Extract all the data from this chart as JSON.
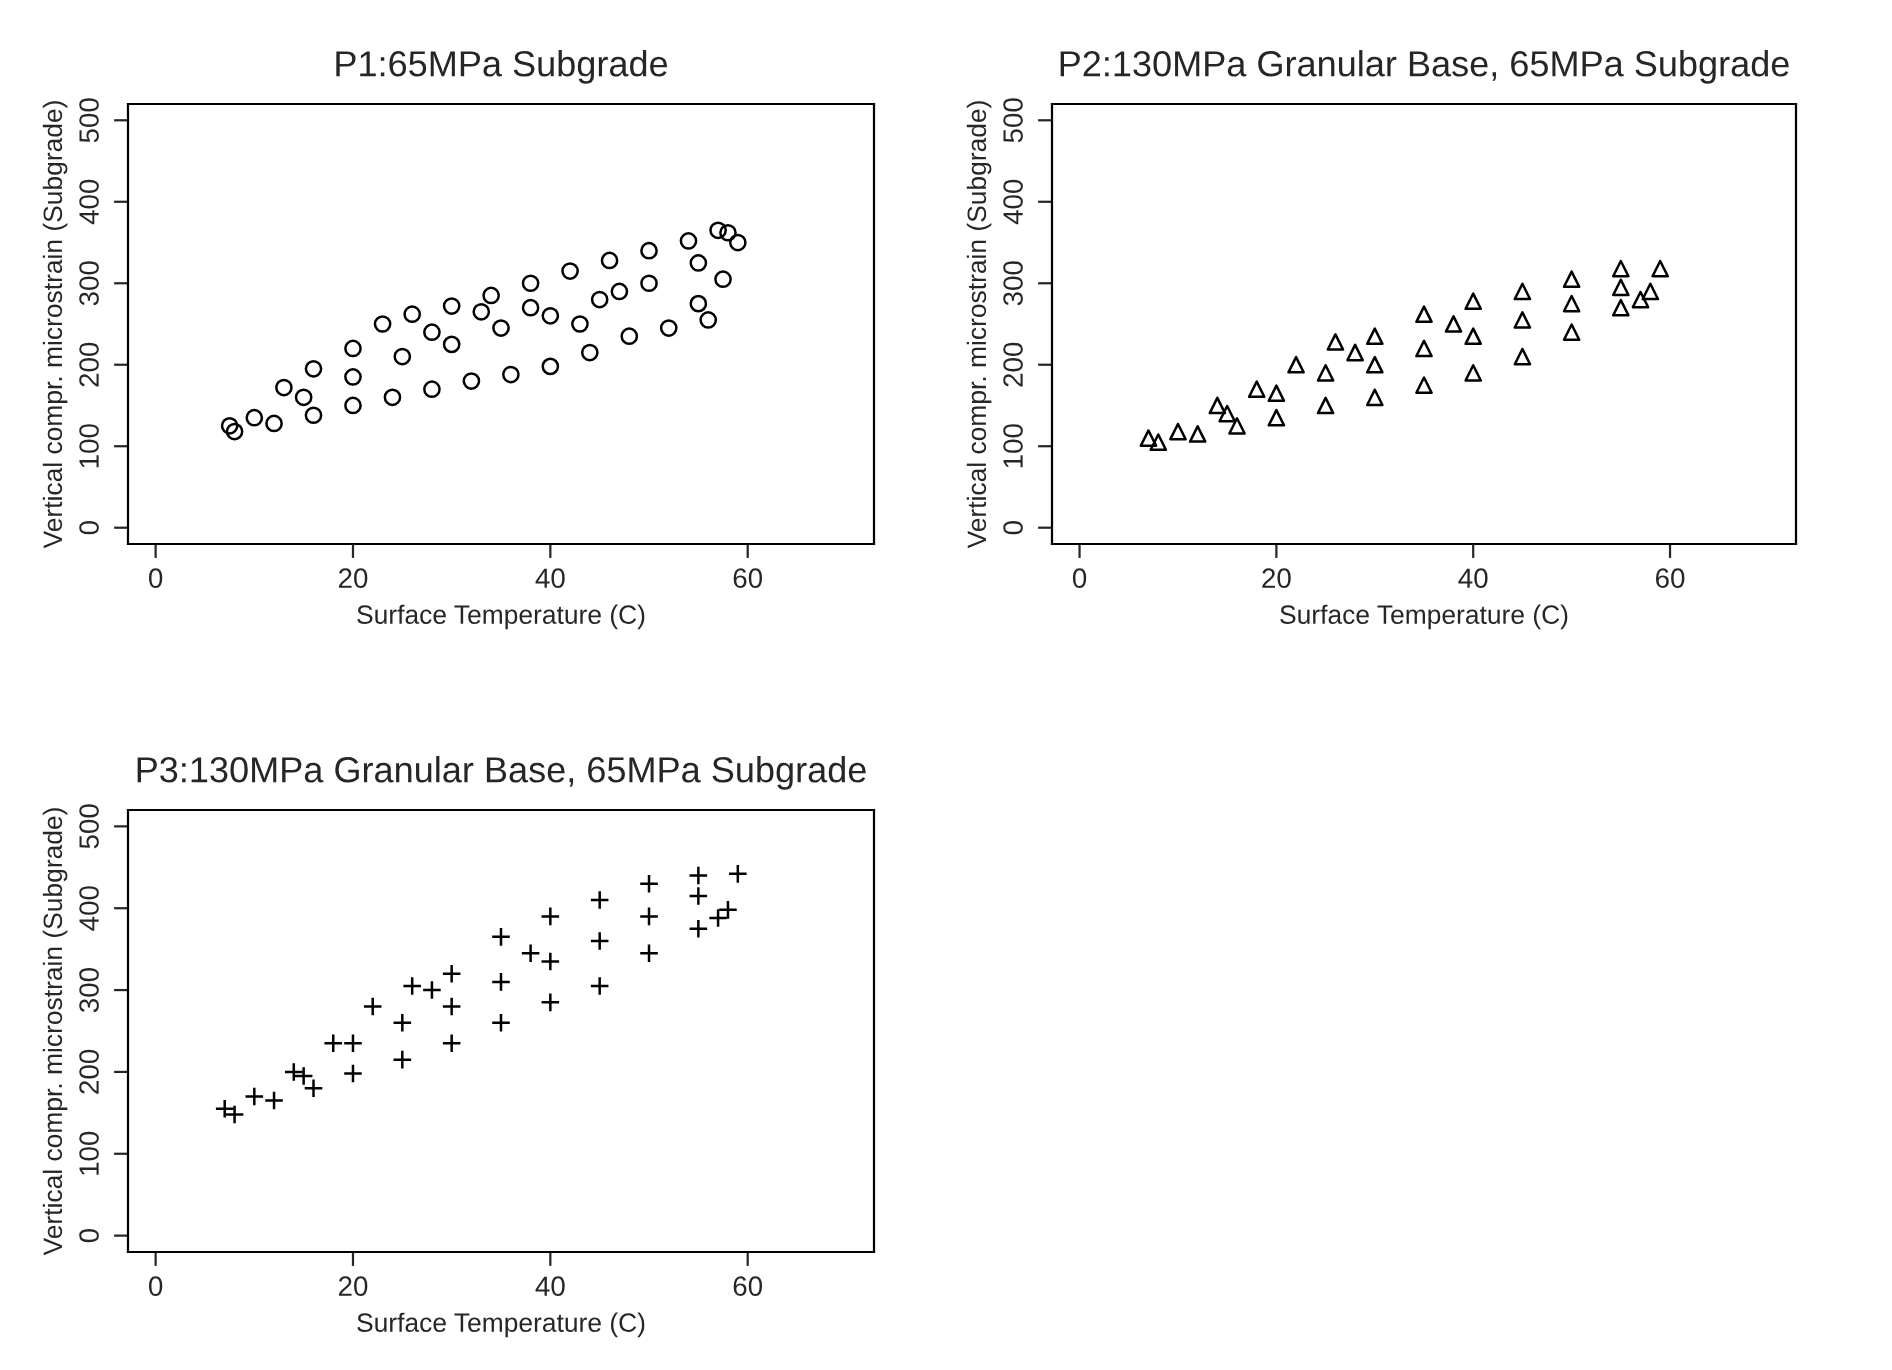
{
  "chart_data": [
    {
      "type": "scatter",
      "title": "P1:65MPa Subgrade",
      "xlabel": "Surface Temperature (C)",
      "ylabel": "Vertical compr. microstrain (Subgrade)",
      "xlim": [
        -2.8,
        72.8
      ],
      "ylim": [
        -20,
        520
      ],
      "xticks": [
        0,
        20,
        40,
        60
      ],
      "yticks": [
        0,
        100,
        200,
        300,
        400,
        500
      ],
      "marker": "circle",
      "series": [
        {
          "color": "#000000",
          "x": [
            7.5,
            10,
            13,
            16,
            20,
            23,
            26,
            30,
            34,
            38,
            42,
            46,
            50,
            54,
            57,
            58,
            8,
            12,
            16,
            20,
            24,
            28,
            32,
            36,
            40,
            44,
            48,
            52,
            56,
            59,
            57.5,
            55,
            15,
            20,
            25,
            30,
            35,
            40,
            45,
            50,
            55,
            28,
            33,
            38,
            43,
            47
          ],
          "values": [
            125,
            135,
            172,
            195,
            220,
            250,
            262,
            272,
            285,
            300,
            315,
            328,
            340,
            352,
            365,
            362,
            118,
            128,
            138,
            150,
            160,
            170,
            180,
            188,
            198,
            215,
            235,
            245,
            255,
            350,
            305,
            275,
            160,
            185,
            210,
            225,
            245,
            260,
            280,
            300,
            325,
            240,
            265,
            270,
            250,
            290
          ]
        }
      ]
    },
    {
      "type": "scatter",
      "title": "P2:130MPa Granular Base, 65MPa Subgrade",
      "xlabel": "Surface Temperature (C)",
      "ylabel": "Vertical compr. microstrain (Subgrade)",
      "xlim": [
        -2.8,
        72.8
      ],
      "ylim": [
        -20,
        520
      ],
      "xticks": [
        0,
        20,
        40,
        60
      ],
      "yticks": [
        0,
        100,
        200,
        300,
        400,
        500
      ],
      "marker": "triangle",
      "series": [
        {
          "color": "#000000",
          "x": [
            7,
            10,
            14,
            18,
            22,
            26,
            30,
            35,
            40,
            45,
            50,
            55,
            59,
            8,
            12,
            16,
            20,
            25,
            30,
            35,
            40,
            45,
            50,
            55,
            57,
            58,
            15,
            20,
            25,
            30,
            35,
            40,
            45,
            50,
            55,
            28,
            38
          ],
          "values": [
            110,
            118,
            150,
            170,
            200,
            228,
            235,
            262,
            278,
            290,
            305,
            318,
            318,
            105,
            115,
            125,
            135,
            150,
            160,
            175,
            190,
            210,
            240,
            270,
            280,
            290,
            140,
            165,
            190,
            200,
            220,
            235,
            255,
            275,
            295,
            215,
            250
          ]
        }
      ]
    },
    {
      "type": "scatter",
      "title": "P3:130MPa Granular Base, 65MPa Subgrade",
      "xlabel": "Surface Temperature (C)",
      "ylabel": "Vertical compr. microstrain (Subgrade)",
      "xlim": [
        -2.8,
        72.8
      ],
      "ylim": [
        -20,
        520
      ],
      "xticks": [
        0,
        20,
        40,
        60
      ],
      "yticks": [
        0,
        100,
        200,
        300,
        400,
        500
      ],
      "marker": "cross",
      "series": [
        {
          "color": "#000000",
          "x": [
            7,
            10,
            14,
            18,
            22,
            26,
            30,
            35,
            40,
            45,
            50,
            55,
            59,
            8,
            12,
            16,
            20,
            25,
            30,
            35,
            40,
            45,
            50,
            55,
            57,
            58,
            15,
            20,
            25,
            30,
            35,
            40,
            45,
            50,
            55,
            28,
            38
          ],
          "values": [
            155,
            170,
            200,
            235,
            280,
            305,
            320,
            365,
            390,
            410,
            430,
            440,
            442,
            148,
            165,
            180,
            198,
            215,
            235,
            260,
            285,
            305,
            345,
            375,
            388,
            398,
            195,
            235,
            260,
            280,
            310,
            335,
            360,
            390,
            415,
            300,
            345
          ]
        }
      ]
    }
  ]
}
